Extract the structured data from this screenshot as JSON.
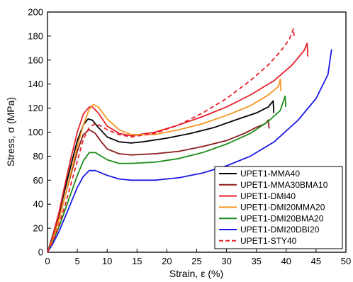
{
  "chart_data": {
    "type": "line",
    "ylabel": "Stress, σ (MPa)",
    "xlabel": "Strain, ε (%)",
    "xlim": [
      0,
      50
    ],
    "ylim": [
      0,
      200
    ],
    "xticks": [
      "0",
      "5",
      "10",
      "15",
      "20",
      "25",
      "30",
      "35",
      "40",
      "45",
      "50"
    ],
    "yticks": [
      "0",
      "20",
      "40",
      "60",
      "80",
      "100",
      "120",
      "140",
      "160",
      "180",
      "200"
    ],
    "grid": false,
    "legend_position": "bottom-right",
    "series": [
      {
        "name": "UPET1-MMA40",
        "color": "#000000",
        "dash": "solid",
        "x": [
          0,
          1,
          2,
          3,
          4,
          5,
          6,
          6.8,
          7.5,
          8.5,
          10,
          12,
          14,
          16,
          20,
          24,
          28,
          32,
          35,
          37,
          37.8,
          37.9,
          37.9
        ],
        "y": [
          0,
          16,
          34,
          54,
          74,
          93,
          106,
          111,
          110,
          104,
          96,
          92,
          91,
          92,
          95,
          99,
          104,
          111,
          116,
          121,
          126,
          119,
          116
        ]
      },
      {
        "name": "UPET1-MMA30BMA10",
        "color": "#8B1A1A",
        "dash": "solid",
        "x": [
          0,
          1,
          2,
          3,
          4,
          5,
          6,
          7,
          8,
          9,
          10,
          12,
          14,
          18,
          22,
          26,
          30,
          33,
          35,
          36.5,
          37,
          37.1,
          37.1
        ],
        "y": [
          0,
          14,
          30,
          48,
          66,
          84,
          98,
          102,
          99,
          92,
          86,
          82,
          81,
          82,
          84,
          88,
          93,
          99,
          104,
          107,
          110,
          105,
          103
        ]
      },
      {
        "name": "UPET1-DMI40",
        "color": "#E8202A",
        "dash": "solid",
        "x": [
          0,
          1,
          2,
          3,
          4,
          5,
          6,
          7,
          7.5,
          8.5,
          10,
          12,
          14,
          18,
          22,
          26,
          30,
          34,
          38,
          41,
          43,
          43.5,
          43.6,
          43.6
        ],
        "y": [
          0,
          15,
          35,
          58,
          80,
          100,
          115,
          121,
          121,
          116,
          105,
          99,
          97,
          100,
          106,
          113,
          121,
          131,
          143,
          156,
          168,
          174,
          166,
          163
        ]
      },
      {
        "name": "UPET1-DMI20MMA20",
        "color": "#F5961E",
        "dash": "solid",
        "x": [
          0,
          1,
          2,
          3,
          4,
          5,
          6,
          7,
          7.7,
          8.5,
          10,
          12,
          14,
          18,
          22,
          26,
          30,
          34,
          37,
          38.7,
          39,
          39.1,
          39.1
        ],
        "y": [
          0,
          12,
          28,
          48,
          68,
          88,
          106,
          119,
          123,
          121,
          111,
          102,
          98,
          98,
          102,
          107,
          114,
          122,
          131,
          138,
          144,
          137,
          134
        ]
      },
      {
        "name": "UPET1-DMI20BMA20",
        "color": "#1A8C1A",
        "dash": "solid",
        "x": [
          0,
          1,
          2,
          3,
          4,
          5,
          6,
          7,
          8,
          9,
          10,
          12,
          14,
          18,
          22,
          26,
          30,
          34,
          37,
          39,
          39.8,
          39.9,
          39.9
        ],
        "y": [
          0,
          10,
          22,
          36,
          50,
          64,
          76,
          83,
          83,
          80,
          77,
          74,
          74,
          75,
          78,
          83,
          90,
          99,
          109,
          118,
          130,
          124,
          121
        ]
      },
      {
        "name": "UPET1-DMI20DBI20",
        "color": "#1A1AE6",
        "dash": "solid",
        "x": [
          0,
          1,
          2,
          3,
          4,
          5,
          6,
          7,
          8,
          9,
          10,
          12,
          14,
          18,
          22,
          26,
          30,
          34,
          38,
          42,
          45,
          47,
          47.6
        ],
        "y": [
          0,
          8,
          18,
          30,
          42,
          54,
          63,
          68,
          68,
          66,
          64,
          61,
          60,
          60,
          62,
          66,
          72,
          80,
          92,
          110,
          128,
          148,
          169
        ]
      },
      {
        "name": "UPET1-STY40",
        "color": "#E8202A",
        "dash": "dashed",
        "x": [
          0,
          1,
          2,
          3,
          4,
          5,
          6,
          7,
          8,
          9,
          10,
          12,
          14,
          18,
          22,
          26,
          30,
          34,
          37,
          39,
          40.5,
          41.2,
          41.3,
          41.3
        ],
        "y": [
          0,
          10,
          24,
          40,
          58,
          76,
          94,
          104,
          107,
          105,
          102,
          98,
          96,
          99,
          106,
          116,
          128,
          143,
          156,
          167,
          177,
          186,
          181,
          179
        ]
      }
    ]
  }
}
